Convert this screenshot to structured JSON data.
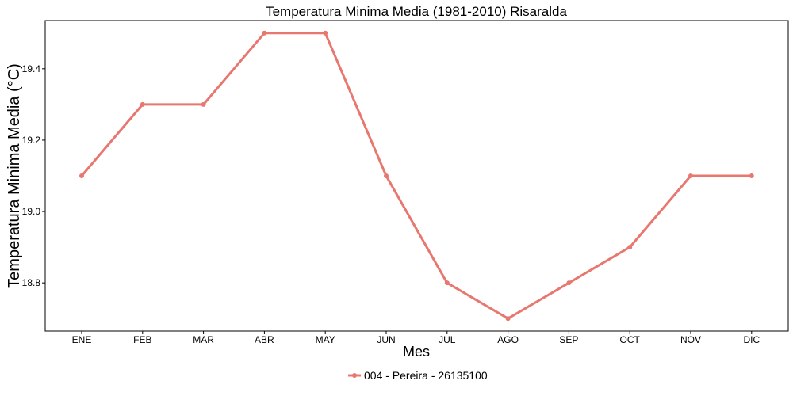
{
  "chart_data": {
    "type": "line",
    "title": "Temperatura Minima Media (1981-2010)  Risaralda",
    "xlabel": "Mes",
    "ylabel": "Temperatura Minima Media  (°C)",
    "categories": [
      "ENE",
      "FEB",
      "MAR",
      "ABR",
      "MAY",
      "JUN",
      "JUL",
      "AGO",
      "SEP",
      "OCT",
      "NOV",
      "DIC"
    ],
    "series": [
      {
        "name": "004 - Pereira - 26135100",
        "color": "#e8776f",
        "values": [
          19.1,
          19.3,
          19.3,
          19.5,
          19.5,
          19.1,
          18.8,
          18.7,
          18.8,
          18.9,
          19.1,
          19.1
        ]
      }
    ],
    "ylim": [
      18.665,
      19.535
    ],
    "yticks": [
      18.8,
      19.0,
      19.2,
      19.4
    ],
    "ytick_labels": [
      "18.8",
      "19.0",
      "19.2",
      "19.4"
    ],
    "grid": false,
    "legend_position": "bottom"
  }
}
